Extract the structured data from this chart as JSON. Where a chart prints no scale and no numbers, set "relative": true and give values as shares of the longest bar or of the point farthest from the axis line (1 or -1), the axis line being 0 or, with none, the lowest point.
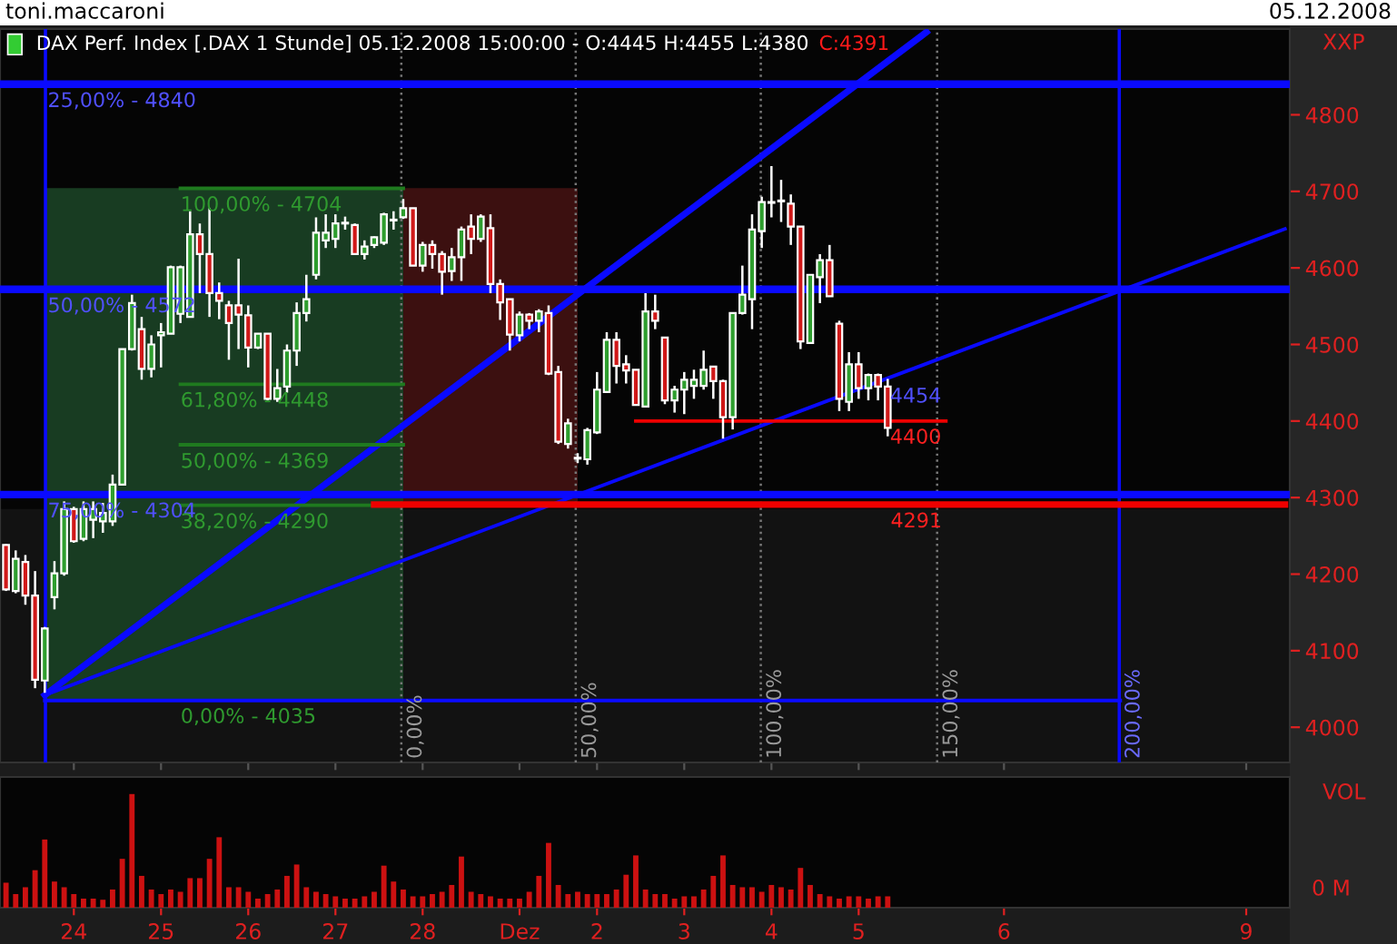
{
  "chart_data": [
    {
      "type": "candlestick",
      "title": "DAX Perf. Index [.DAX 1 Stunde] 05.12.2008 15:00:00 - O:4445 H:4455 L:4380",
      "subtitle": "C:4391",
      "categories": [
        null,
        null,
        null,
        null,
        null,
        null,
        null,
        null,
        null,
        null,
        null,
        null,
        null,
        null,
        null,
        null,
        null,
        null,
        null,
        null,
        null,
        null,
        null,
        null,
        null,
        null,
        null,
        null,
        null,
        null,
        null,
        null,
        null,
        null,
        null,
        null,
        null,
        null,
        null,
        null,
        null,
        null,
        null,
        null,
        null,
        null,
        null,
        null,
        null,
        null,
        null,
        null,
        null,
        null,
        null,
        null,
        null,
        null,
        null,
        null,
        null,
        null,
        null,
        null,
        null,
        null,
        null,
        null,
        null,
        null,
        null,
        null,
        null,
        null,
        null,
        null,
        null,
        null,
        null,
        null,
        null,
        null,
        null,
        null,
        null,
        null,
        null,
        null,
        null,
        null,
        null,
        null,
        null,
        null,
        null,
        null,
        null,
        null,
        null,
        null,
        null,
        null,
        null,
        null,
        null,
        null,
        null,
        null,
        null,
        null,
        null,
        null,
        null,
        null,
        null,
        null,
        null,
        null,
        null,
        null,
        null,
        null,
        null,
        null,
        null,
        null,
        null,
        null,
        null,
        null,
        null,
        null,
        null
      ],
      "ohlc": [
        [
          4238,
          4239,
          4178,
          4180
        ],
        [
          4178,
          4231,
          4175,
          4220
        ],
        [
          4216,
          4225,
          4160,
          4172
        ],
        [
          4172,
          4204,
          4051,
          4062
        ],
        [
          4061,
          4131,
          4045,
          4129
        ],
        [
          4170,
          4217,
          4154,
          4201
        ],
        [
          4201,
          4295,
          4198,
          4285
        ],
        [
          4285,
          4288,
          4241,
          4243
        ],
        [
          4246,
          4295,
          4243,
          4285
        ],
        [
          4271,
          4295,
          4247,
          4285
        ],
        [
          4269,
          4293,
          4254,
          4280
        ],
        [
          4269,
          4330,
          4263,
          4317
        ],
        [
          4317,
          4494,
          4317,
          4494
        ],
        [
          4494,
          4565,
          4492,
          4554
        ],
        [
          4520,
          4536,
          4454,
          4468
        ],
        [
          4468,
          4512,
          4457,
          4500
        ],
        [
          4512,
          4528,
          4470,
          4516
        ],
        [
          4514,
          4603,
          4514,
          4601
        ],
        [
          4540,
          4603,
          4528,
          4601
        ],
        [
          4536,
          4674,
          4536,
          4644
        ],
        [
          4644,
          4658,
          4567,
          4618
        ],
        [
          4618,
          4678,
          4536,
          4567
        ],
        [
          4567,
          4581,
          4533,
          4557
        ],
        [
          4551,
          4557,
          4480,
          4528
        ],
        [
          4551,
          4612,
          4494,
          4539
        ],
        [
          4538,
          4551,
          4470,
          4496
        ],
        [
          4496,
          4514,
          4494,
          4514
        ],
        [
          4514,
          4514,
          4427,
          4429
        ],
        [
          4429,
          4468,
          4425,
          4443
        ],
        [
          4445,
          4500,
          4437,
          4492
        ],
        [
          4492,
          4555,
          4472,
          4541
        ],
        [
          4541,
          4591,
          4530,
          4559
        ],
        [
          4591,
          4666,
          4585,
          4646
        ],
        [
          4636,
          4670,
          4626,
          4646
        ],
        [
          4638,
          4670,
          4626,
          4658
        ],
        [
          4658,
          4667,
          4650,
          4659
        ],
        [
          4656,
          4658,
          4617,
          4618
        ],
        [
          4618,
          4636,
          4611,
          4628
        ],
        [
          4630,
          4641,
          4626,
          4640
        ],
        [
          4633,
          4672,
          4630,
          4670
        ],
        [
          4662,
          4674,
          4650,
          4663
        ],
        [
          4666,
          4690,
          4664,
          4678
        ],
        [
          4678,
          4678,
          4603,
          4603
        ],
        [
          4603,
          4634,
          4595,
          4630
        ],
        [
          4630,
          4636,
          4599,
          4618
        ],
        [
          4618,
          4622,
          4565,
          4595
        ],
        [
          4596,
          4626,
          4583,
          4614
        ],
        [
          4614,
          4654,
          4583,
          4650
        ],
        [
          4654,
          4670,
          4618,
          4638
        ],
        [
          4638,
          4670,
          4634,
          4667
        ],
        [
          4652,
          4670,
          4567,
          4579
        ],
        [
          4579,
          4585,
          4532,
          4555
        ],
        [
          4559,
          4559,
          4492,
          4513
        ],
        [
          4512,
          4543,
          4504,
          4539
        ],
        [
          4539,
          4541,
          4520,
          4531
        ],
        [
          4531,
          4546,
          4516,
          4543
        ],
        [
          4541,
          4551,
          4460,
          4462
        ],
        [
          4464,
          4472,
          4370,
          4373
        ],
        [
          4370,
          4403,
          4364,
          4397
        ],
        [
          4351,
          4358,
          4345,
          4352
        ],
        [
          4350,
          4391,
          4343,
          4388
        ],
        [
          4385,
          4464,
          4383,
          4441
        ],
        [
          4438,
          4516,
          4437,
          4506
        ],
        [
          4506,
          4516,
          4449,
          4472
        ],
        [
          4474,
          4486,
          4449,
          4466
        ],
        [
          4467,
          4467,
          4421,
          4421
        ],
        [
          4419,
          4567,
          4419,
          4543
        ],
        [
          4543,
          4565,
          4520,
          4531
        ],
        [
          4509,
          4509,
          4422,
          4427
        ],
        [
          4427,
          4446,
          4411,
          4441
        ],
        [
          4441,
          4464,
          4409,
          4454
        ],
        [
          4446,
          4467,
          4429,
          4454
        ],
        [
          4446,
          4492,
          4441,
          4467
        ],
        [
          4471,
          4471,
          4429,
          4452
        ],
        [
          4452,
          4454,
          4377,
          4405
        ],
        [
          4405,
          4541,
          4389,
          4541
        ],
        [
          4541,
          4603,
          4539,
          4565
        ],
        [
          4559,
          4670,
          4520,
          4650
        ],
        [
          4648,
          4693,
          4626,
          4686
        ],
        [
          4685,
          4733,
          4666,
          4686
        ],
        [
          4688,
          4715,
          4660,
          4687
        ],
        [
          4684,
          4696,
          4630,
          4654
        ],
        [
          4654,
          4654,
          4494,
          4504
        ],
        [
          4502,
          4591,
          4502,
          4591
        ],
        [
          4588,
          4618,
          4554,
          4610
        ],
        [
          4610,
          4630,
          4563,
          4563
        ],
        [
          4527,
          4531,
          4413,
          4429
        ],
        [
          4425,
          4490,
          4413,
          4474
        ],
        [
          4474,
          4490,
          4429,
          4443
        ],
        [
          4443,
          4462,
          4427,
          4460
        ],
        [
          4460,
          4462,
          4427,
          4445
        ],
        [
          4445,
          4455,
          4380,
          4391
        ],
        null,
        null,
        null,
        null,
        null,
        null,
        null,
        null,
        null,
        null,
        null,
        null,
        null,
        null,
        null,
        null,
        null,
        null,
        null,
        null,
        null,
        null,
        null,
        null,
        null,
        null,
        null,
        null,
        null,
        null,
        null,
        null,
        null,
        null,
        null,
        null,
        null,
        null,
        null,
        null,
        null
      ],
      "series": [
        {
          "type": "line",
          "color": "#0a0aff",
          "values": [
            null,
            null,
            null,
            null,
            4042,
            null,
            null,
            null,
            null,
            null,
            null,
            null,
            null,
            null,
            null,
            null,
            null,
            null,
            null,
            null,
            null,
            null,
            null,
            null,
            null,
            null,
            null,
            null,
            null,
            null,
            null,
            null,
            null,
            null,
            null,
            null,
            null,
            null,
            null,
            null,
            null,
            null,
            null,
            null,
            null,
            null,
            null,
            null,
            null,
            null,
            null,
            null,
            null,
            null,
            null,
            null,
            null,
            null,
            null,
            null,
            null,
            null,
            null,
            null,
            null,
            null,
            null,
            null,
            null,
            null,
            null,
            null,
            null,
            null,
            null,
            null,
            null,
            null,
            null,
            null,
            null,
            null,
            null,
            null,
            null,
            null,
            null,
            null,
            null,
            null,
            null,
            null,
            null,
            null,
            null,
            4908,
            null,
            null,
            null,
            null,
            null,
            null,
            null,
            null,
            null,
            null,
            null,
            null,
            null,
            null,
            null,
            null,
            null,
            null,
            null,
            null,
            null,
            null,
            null,
            null,
            null,
            null,
            null,
            null,
            null,
            null,
            null,
            null,
            null,
            null,
            null,
            null,
            null
          ]
        },
        {
          "type": "line",
          "color": "#0a0aff",
          "values": [
            null,
            null,
            null,
            null,
            4042,
            null,
            null,
            null,
            null,
            null,
            null,
            null,
            null,
            null,
            null,
            null,
            null,
            null,
            null,
            null,
            null,
            null,
            null,
            null,
            null,
            null,
            null,
            null,
            null,
            null,
            null,
            null,
            null,
            null,
            null,
            null,
            null,
            null,
            null,
            null,
            null,
            null,
            null,
            null,
            null,
            null,
            null,
            null,
            null,
            null,
            null,
            null,
            null,
            null,
            null,
            null,
            null,
            null,
            null,
            null,
            null,
            null,
            null,
            null,
            null,
            null,
            null,
            null,
            null,
            null,
            null,
            null,
            null,
            null,
            null,
            null,
            null,
            null,
            null,
            null,
            null,
            null,
            null,
            null,
            null,
            null,
            null,
            null,
            null,
            null,
            null,
            null,
            null,
            null,
            null,
            null,
            null,
            null,
            null,
            null,
            null,
            null,
            null,
            null,
            null,
            null,
            null,
            null,
            null,
            null,
            null,
            null,
            null,
            null,
            null,
            null,
            null,
            null,
            null,
            null,
            null,
            null,
            null,
            null,
            null,
            null,
            null,
            null,
            null,
            null,
            null,
            null,
            4651
          ]
        },
        {
          "type": "line",
          "color": "#0a0aff",
          "values": [
            null,
            null,
            null,
            null,
            4035,
            null,
            null,
            null,
            null,
            null,
            null,
            null,
            null,
            null,
            null,
            null,
            null,
            null,
            null,
            null,
            null,
            null,
            null,
            null,
            null,
            null,
            null,
            null,
            null,
            null,
            null,
            null,
            null,
            null,
            null,
            null,
            null,
            null,
            null,
            null,
            null,
            null,
            null,
            null,
            null,
            null,
            null,
            null,
            null,
            null,
            null,
            null,
            null,
            null,
            null,
            null,
            null,
            null,
            null,
            null,
            null,
            null,
            null,
            null,
            null,
            null,
            null,
            null,
            null,
            null,
            null,
            null,
            null,
            null,
            null,
            null,
            null,
            null,
            null,
            null,
            null,
            null,
            null,
            null,
            null,
            null,
            null,
            null,
            null,
            null,
            null,
            null,
            null,
            null,
            null,
            null,
            null,
            null,
            null,
            null,
            null,
            null,
            null,
            null,
            null,
            null,
            null,
            null,
            null,
            null,
            null,
            null,
            null,
            null,
            null,
            4035,
            null,
            null,
            null,
            null,
            null,
            null,
            null,
            null,
            null,
            null,
            null,
            null,
            null,
            null,
            null,
            null,
            null
          ]
        },
        {
          "type": "line",
          "color": "#1f7a1f",
          "values": [
            null,
            null,
            null,
            null,
            null,
            null,
            null,
            null,
            null,
            null,
            null,
            null,
            null,
            null,
            null,
            null,
            null,
            null,
            4704,
            null,
            null,
            null,
            null,
            null,
            null,
            null,
            null,
            null,
            null,
            null,
            null,
            null,
            null,
            null,
            null,
            null,
            null,
            null,
            null,
            null,
            null,
            4704,
            null,
            null,
            null,
            null,
            null,
            null,
            null,
            null,
            null,
            null,
            null,
            null,
            null,
            null,
            null,
            null,
            null,
            null,
            null,
            null,
            null,
            null,
            null,
            null,
            null,
            null,
            null,
            null,
            null,
            null,
            null,
            null,
            null,
            null,
            null,
            null,
            null,
            null,
            null,
            null,
            null,
            null,
            null,
            null,
            null,
            null,
            null,
            null,
            null,
            null,
            null,
            null,
            null,
            null,
            null,
            null,
            null,
            null,
            null,
            null,
            null,
            null,
            null,
            null,
            null,
            null,
            null,
            null,
            null,
            null,
            null,
            null,
            null,
            null,
            null,
            null,
            null,
            null,
            null,
            null,
            null,
            null,
            null,
            null,
            null,
            null,
            null,
            null,
            null,
            null,
            null
          ]
        },
        {
          "type": "line",
          "color": "#1f7a1f",
          "values": [
            null,
            null,
            null,
            null,
            null,
            null,
            null,
            null,
            null,
            null,
            null,
            null,
            null,
            null,
            null,
            null,
            null,
            null,
            4448,
            null,
            null,
            null,
            null,
            null,
            null,
            null,
            null,
            null,
            null,
            null,
            null,
            null,
            null,
            null,
            null,
            null,
            null,
            null,
            null,
            null,
            null,
            4448,
            null,
            null,
            null,
            null,
            null,
            null,
            null,
            null,
            null,
            null,
            null,
            null,
            null,
            null,
            null,
            null,
            null,
            null,
            null,
            null,
            null,
            null,
            null,
            null,
            null,
            null,
            null,
            null,
            null,
            null,
            null,
            null,
            null,
            null,
            null,
            null,
            null,
            null,
            null,
            null,
            null,
            null,
            null,
            null,
            null,
            null,
            null,
            null,
            null,
            null,
            null,
            null,
            null,
            null,
            null,
            null,
            null,
            null,
            null,
            null,
            null,
            null,
            null,
            null,
            null,
            null,
            null,
            null,
            null,
            null,
            null,
            null,
            null,
            null,
            null,
            null,
            null,
            null,
            null,
            null,
            null,
            null,
            null,
            null,
            null,
            null,
            null,
            null,
            null,
            null,
            null
          ]
        },
        {
          "type": "line",
          "color": "#1f7a1f",
          "values": [
            null,
            null,
            null,
            null,
            null,
            null,
            null,
            null,
            null,
            null,
            null,
            null,
            null,
            null,
            null,
            null,
            null,
            null,
            4369,
            null,
            null,
            null,
            null,
            null,
            null,
            null,
            null,
            null,
            null,
            null,
            null,
            null,
            null,
            null,
            null,
            null,
            null,
            null,
            null,
            null,
            null,
            4369,
            null,
            null,
            null,
            null,
            null,
            null,
            null,
            null,
            null,
            null,
            null,
            null,
            null,
            null,
            null,
            null,
            null,
            null,
            null,
            null,
            null,
            null,
            null,
            null,
            null,
            null,
            null,
            null,
            null,
            null,
            null,
            null,
            null,
            null,
            null,
            null,
            null,
            null,
            null,
            null,
            null,
            null,
            null,
            null,
            null,
            null,
            null,
            null,
            null,
            null,
            null,
            null,
            null,
            null,
            null,
            null,
            null,
            null,
            null,
            null,
            null,
            null,
            null,
            null,
            null,
            null,
            null,
            null,
            null,
            null,
            null,
            null,
            null,
            null,
            null,
            null,
            null,
            null,
            null,
            null,
            null,
            null,
            null,
            null,
            null,
            null,
            null,
            null,
            null,
            null,
            null
          ]
        },
        {
          "type": "line",
          "color": "#1f7a1f",
          "values": [
            null,
            null,
            null,
            null,
            null,
            null,
            null,
            null,
            null,
            null,
            null,
            null,
            null,
            null,
            null,
            null,
            null,
            null,
            4290,
            null,
            null,
            null,
            null,
            null,
            null,
            null,
            null,
            null,
            null,
            null,
            null,
            null,
            null,
            null,
            null,
            null,
            null,
            null,
            null,
            null,
            null,
            4290,
            null,
            null,
            null,
            null,
            null,
            null,
            null,
            null,
            null,
            null,
            null,
            null,
            null,
            null,
            null,
            null,
            null,
            null,
            null,
            null,
            null,
            null,
            null,
            null,
            null,
            null,
            null,
            null,
            null,
            null,
            null,
            null,
            null,
            null,
            null,
            null,
            null,
            null,
            null,
            null,
            null,
            null,
            null,
            null,
            null,
            null,
            null,
            null,
            null,
            null,
            null,
            null,
            null,
            null,
            null,
            null,
            null,
            null,
            null,
            null,
            null,
            null,
            null,
            null,
            null,
            null,
            null,
            null,
            null,
            null,
            null,
            null,
            null,
            null,
            null,
            null,
            null,
            null,
            null,
            null,
            null,
            null,
            null,
            null,
            null,
            null,
            null,
            null,
            null,
            null,
            null
          ]
        },
        {
          "type": "line",
          "color": "#ee0000",
          "values": [
            null,
            null,
            null,
            null,
            null,
            null,
            null,
            null,
            null,
            null,
            null,
            null,
            null,
            null,
            null,
            null,
            null,
            null,
            null,
            null,
            null,
            null,
            null,
            null,
            null,
            null,
            null,
            null,
            null,
            null,
            null,
            null,
            null,
            null,
            null,
            null,
            null,
            null,
            4291,
            null,
            null,
            null,
            null,
            null,
            null,
            null,
            null,
            null,
            null,
            null,
            null,
            null,
            null,
            null,
            null,
            null,
            null,
            null,
            null,
            null,
            null,
            null,
            null,
            null,
            null,
            null,
            null,
            null,
            null,
            null,
            null,
            null,
            null,
            null,
            null,
            null,
            null,
            null,
            null,
            null,
            null,
            null,
            null,
            null,
            null,
            null,
            null,
            null,
            null,
            null,
            null,
            null,
            null,
            null,
            null,
            null,
            null,
            null,
            null,
            null,
            null,
            null,
            null,
            null,
            null,
            null,
            null,
            null,
            null,
            null,
            null,
            null,
            null,
            null,
            null,
            null,
            null,
            null,
            null,
            null,
            null,
            null,
            null,
            null,
            null,
            null,
            null,
            null,
            null,
            null,
            null,
            null,
            4291
          ]
        },
        {
          "type": "line",
          "color": "#ee0000",
          "values": [
            null,
            null,
            null,
            null,
            null,
            null,
            null,
            null,
            null,
            null,
            null,
            null,
            null,
            null,
            null,
            null,
            null,
            null,
            null,
            null,
            null,
            null,
            null,
            null,
            null,
            null,
            null,
            null,
            null,
            null,
            null,
            null,
            null,
            null,
            null,
            null,
            null,
            null,
            null,
            null,
            null,
            null,
            null,
            null,
            null,
            null,
            null,
            null,
            null,
            null,
            null,
            null,
            null,
            null,
            null,
            null,
            null,
            null,
            null,
            null,
            null,
            null,
            null,
            null,
            null,
            4400,
            null,
            null,
            null,
            null,
            null,
            null,
            null,
            null,
            null,
            null,
            null,
            null,
            null,
            null,
            null,
            null,
            null,
            null,
            null,
            null,
            null,
            null,
            null,
            null,
            null,
            null,
            null,
            null,
            null,
            null,
            null,
            4400,
            null,
            null,
            null,
            null,
            null,
            null,
            null,
            null,
            null,
            null,
            null,
            null,
            null,
            null,
            null,
            null,
            null,
            null,
            null,
            null,
            null,
            null,
            null,
            null,
            null,
            null,
            null,
            null,
            null,
            null,
            null,
            null,
            null,
            null,
            null
          ]
        }
      ],
      "ref_lines": [
        {
          "axis": "y",
          "value": 4840,
          "color": "#0a0aff",
          "line_style": "solid"
        },
        {
          "axis": "y",
          "value": 4572,
          "color": "#0a0aff",
          "line_style": "solid"
        },
        {
          "axis": "y",
          "value": 4304,
          "color": "#0a0aff",
          "line_style": "solid"
        }
      ],
      "bands": [
        {
          "axis": "y",
          "from": 3954,
          "to": 4285,
          "color": "#121212"
        }
      ],
      "annotations": [
        "toni.maccaroni",
        "05.12.2008",
        "XXP",
        "0,00%",
        "50,00%",
        "100,00%",
        "150,00%",
        "200,00%",
        "100,00% - 4704",
        "61,80% - 4448",
        "50,00% - 4369",
        "0,00% - 4035",
        "4454",
        "4400",
        {
          "text": "25,00% - 4840",
          "y": 4840
        },
        {
          "text": "50,00% - 4572",
          "y": 4572
        },
        {
          "text": "75,00% - 4304",
          "y": 4304
        },
        {
          "text": "38,20% - 4290",
          "y": 4290
        },
        {
          "text": "4291",
          "y": 4291
        }
      ],
      "ylim": [
        3954,
        4912
      ],
      "yticks": [
        4000,
        4100,
        4200,
        4300,
        4400,
        4500,
        4600,
        4700,
        4800
      ],
      "tick_labels": "y"
    },
    {
      "type": "bar",
      "relative": true,
      "color": "#cc1111",
      "categories": [
        null,
        null,
        null,
        null,
        null,
        null,
        null,
        "24",
        null,
        null,
        null,
        null,
        null,
        null,
        null,
        null,
        "25",
        null,
        null,
        null,
        null,
        null,
        null,
        null,
        null,
        "26",
        null,
        null,
        null,
        null,
        null,
        null,
        null,
        null,
        "27",
        null,
        null,
        null,
        null,
        null,
        null,
        null,
        null,
        "28",
        null,
        null,
        null,
        null,
        null,
        null,
        null,
        null,
        null,
        "Dez",
        null,
        null,
        null,
        null,
        null,
        null,
        null,
        "2",
        null,
        null,
        null,
        null,
        null,
        null,
        null,
        null,
        "3",
        null,
        null,
        null,
        null,
        null,
        null,
        null,
        null,
        "4",
        null,
        null,
        null,
        null,
        null,
        null,
        null,
        null,
        "5",
        null,
        null,
        null,
        null,
        null,
        null,
        null,
        null,
        null,
        null,
        null,
        null,
        null,
        null,
        "6",
        null,
        null,
        null,
        null,
        null,
        null,
        null,
        null,
        null,
        null,
        null,
        null,
        null,
        null,
        null,
        null,
        null,
        null,
        null,
        null,
        null,
        null,
        null,
        null,
        "9",
        null,
        null,
        null,
        null
      ],
      "values": [
        0.22,
        0.12,
        0.18,
        0.33,
        0.6,
        0.23,
        0.18,
        0.12,
        0.08,
        0.08,
        0.07,
        0.16,
        0.43,
        1,
        0.28,
        0.16,
        0.12,
        0.16,
        0.14,
        0.26,
        0.26,
        0.43,
        0.62,
        0.18,
        0.18,
        0.14,
        0.08,
        0.12,
        0.16,
        0.28,
        0.38,
        0.18,
        0.14,
        0.12,
        0.1,
        0.08,
        0.08,
        0.1,
        0.14,
        0.37,
        0.23,
        0.16,
        0.1,
        0.1,
        0.12,
        0.14,
        0.2,
        0.45,
        0.14,
        0.12,
        0.1,
        0.08,
        0.08,
        0.08,
        0.14,
        0.28,
        0.57,
        0.2,
        0.12,
        0.14,
        0.12,
        0.12,
        0.12,
        0.16,
        0.29,
        0.46,
        0.16,
        0.12,
        0.12,
        0.08,
        0.1,
        0.1,
        0.16,
        0.28,
        0.46,
        0.2,
        0.18,
        0.18,
        0.14,
        0.2,
        0.18,
        0.16,
        0.35,
        0.2,
        0.12,
        0.1,
        0.08,
        0.1,
        0.1,
        0.08,
        0.1,
        0.1,
        null,
        null,
        null,
        null,
        null,
        null,
        null,
        null,
        null,
        null,
        null,
        null,
        null,
        null,
        null,
        null,
        null,
        null,
        null,
        null,
        null,
        null,
        null,
        null,
        null,
        null,
        null,
        null,
        null,
        null,
        null,
        null,
        null,
        null,
        null,
        null,
        null,
        null,
        null,
        null,
        null
      ],
      "annotations": [
        "VOL",
        "0 M"
      ],
      "tick_labels": "x"
    }
  ]
}
